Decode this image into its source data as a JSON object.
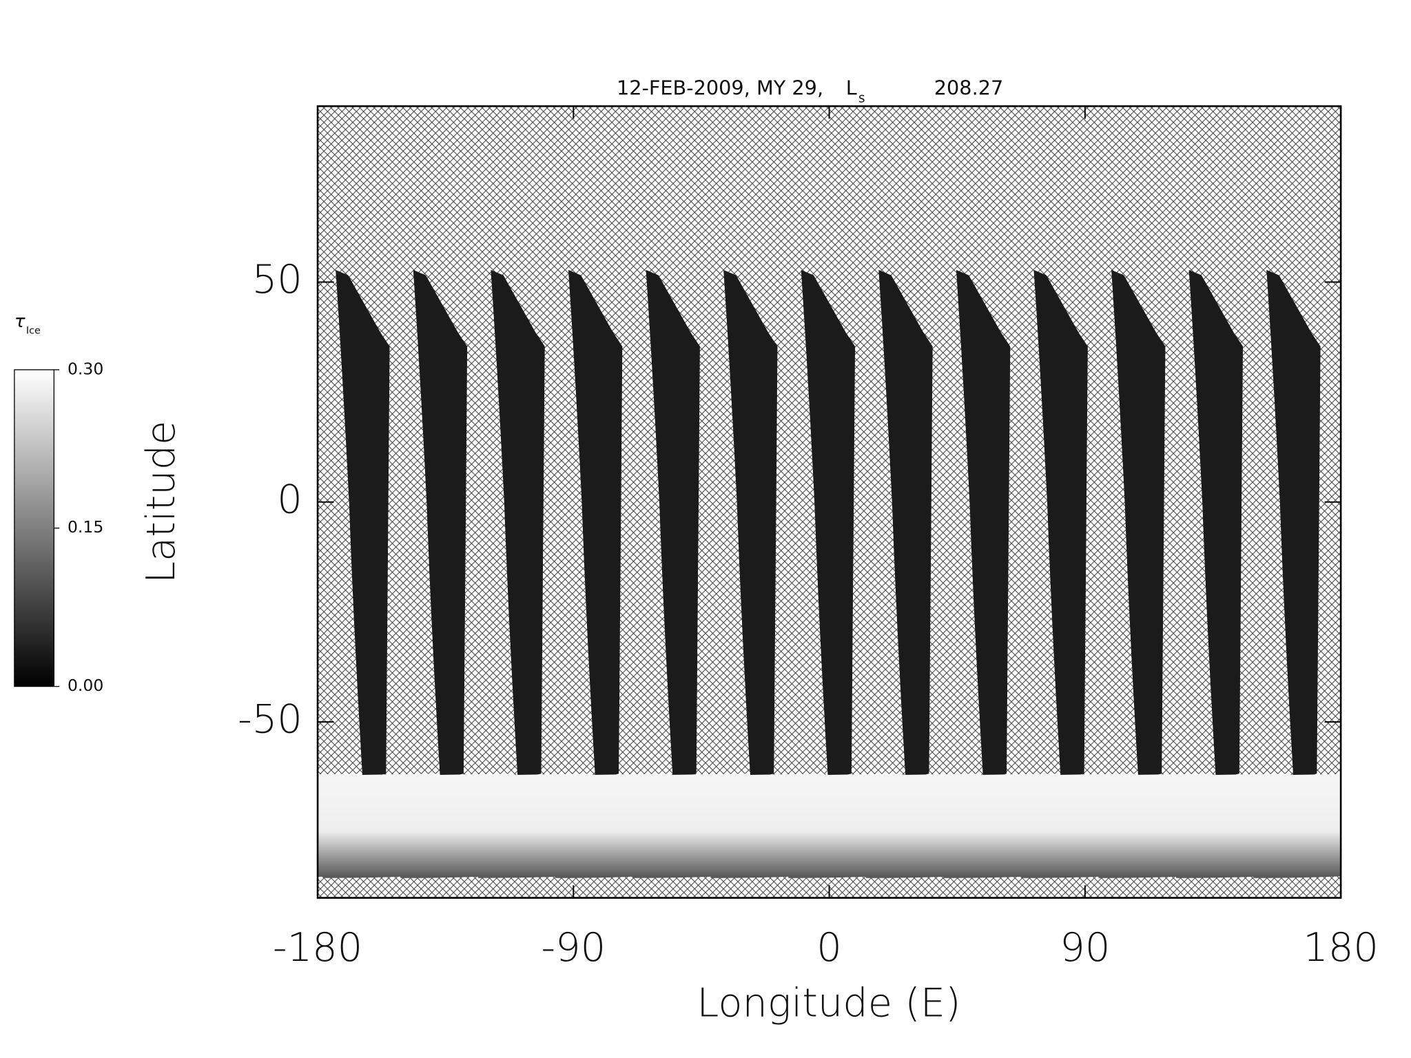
{
  "chart_data": {
    "type": "swath-map",
    "title": "12-FEB-2009, MY 29,",
    "ls_label": "L",
    "ls_subscript": "s",
    "ls_value": "208.27",
    "x_label": "Longitude (E)",
    "y_label": "Latitude",
    "xlim": [
      -180,
      180
    ],
    "ylim": [
      -90,
      90
    ],
    "xticks": [
      -180,
      -90,
      0,
      90,
      180
    ],
    "yticks": [
      -50,
      0,
      50
    ],
    "colorbar": {
      "label": "τ",
      "label_subscript": "Ice",
      "lim": [
        0,
        0.3
      ],
      "ticks": [
        {
          "value": 0,
          "label": "0.00"
        },
        {
          "value": 0.15,
          "label": "0.15"
        },
        {
          "value": 0.3,
          "label": "0.30"
        }
      ]
    }
  }
}
